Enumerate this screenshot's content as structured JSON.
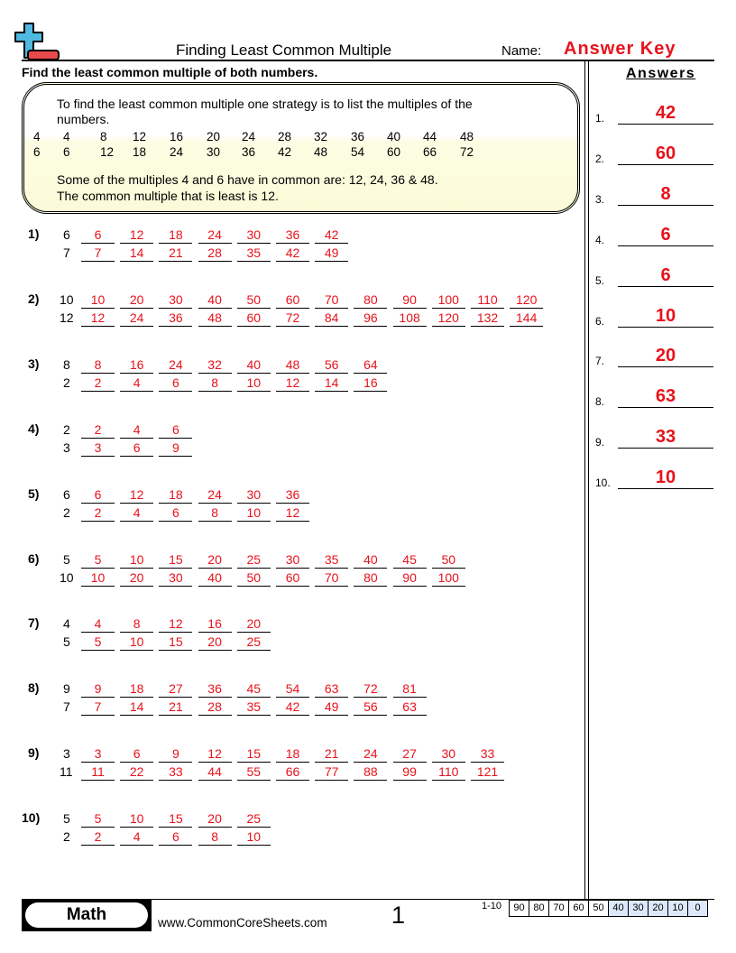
{
  "header": {
    "title": "Finding Least Common Multiple",
    "name_label": "Name:",
    "name_value": "Answer Key",
    "logo_icon": "plus-minus-logo-icon"
  },
  "instructions": "Find the least common multiple of both numbers.",
  "answers_heading": "Answers",
  "example": {
    "line1": "To find the least common multiple one strategy is to list the multiples of the",
    "line2": "numbers.",
    "rows": [
      [
        "4",
        "4",
        "8",
        "12",
        "16",
        "20",
        "24",
        "28",
        "32",
        "36",
        "40",
        "44",
        "48"
      ],
      [
        "6",
        "6",
        "12",
        "18",
        "24",
        "30",
        "36",
        "42",
        "48",
        "54",
        "60",
        "66",
        "72"
      ]
    ],
    "line3": "Some of the multiples 4 and 6 have in common are: 12, 24, 36 & 48.",
    "line4": "The common multiple that is least is 12."
  },
  "problems": [
    {
      "label": "1)",
      "a": "6",
      "b": "7",
      "ma": [
        "6",
        "12",
        "18",
        "24",
        "30",
        "36",
        "42"
      ],
      "mb": [
        "7",
        "14",
        "21",
        "28",
        "35",
        "42",
        "49"
      ]
    },
    {
      "label": "2)",
      "a": "10",
      "b": "12",
      "ma": [
        "10",
        "20",
        "30",
        "40",
        "50",
        "60",
        "70",
        "80",
        "90",
        "100",
        "110",
        "120"
      ],
      "mb": [
        "12",
        "24",
        "36",
        "48",
        "60",
        "72",
        "84",
        "96",
        "108",
        "120",
        "132",
        "144"
      ]
    },
    {
      "label": "3)",
      "a": "8",
      "b": "2",
      "ma": [
        "8",
        "16",
        "24",
        "32",
        "40",
        "48",
        "56",
        "64"
      ],
      "mb": [
        "2",
        "4",
        "6",
        "8",
        "10",
        "12",
        "14",
        "16"
      ]
    },
    {
      "label": "4)",
      "a": "2",
      "b": "3",
      "ma": [
        "2",
        "4",
        "6"
      ],
      "mb": [
        "3",
        "6",
        "9"
      ]
    },
    {
      "label": "5)",
      "a": "6",
      "b": "2",
      "ma": [
        "6",
        "12",
        "18",
        "24",
        "30",
        "36"
      ],
      "mb": [
        "2",
        "4",
        "6",
        "8",
        "10",
        "12"
      ]
    },
    {
      "label": "6)",
      "a": "5",
      "b": "10",
      "ma": [
        "5",
        "10",
        "15",
        "20",
        "25",
        "30",
        "35",
        "40",
        "45",
        "50"
      ],
      "mb": [
        "10",
        "20",
        "30",
        "40",
        "50",
        "60",
        "70",
        "80",
        "90",
        "100"
      ]
    },
    {
      "label": "7)",
      "a": "4",
      "b": "5",
      "ma": [
        "4",
        "8",
        "12",
        "16",
        "20"
      ],
      "mb": [
        "5",
        "10",
        "15",
        "20",
        "25"
      ]
    },
    {
      "label": "8)",
      "a": "9",
      "b": "7",
      "ma": [
        "9",
        "18",
        "27",
        "36",
        "45",
        "54",
        "63",
        "72",
        "81"
      ],
      "mb": [
        "7",
        "14",
        "21",
        "28",
        "35",
        "42",
        "49",
        "56",
        "63"
      ]
    },
    {
      "label": "9)",
      "a": "3",
      "b": "11",
      "ma": [
        "3",
        "6",
        "9",
        "12",
        "15",
        "18",
        "21",
        "24",
        "27",
        "30",
        "33"
      ],
      "mb": [
        "11",
        "22",
        "33",
        "44",
        "55",
        "66",
        "77",
        "88",
        "99",
        "110",
        "121"
      ]
    },
    {
      "label": "10)",
      "a": "5",
      "b": "2",
      "ma": [
        "5",
        "10",
        "15",
        "20",
        "25"
      ],
      "mb": [
        "2",
        "4",
        "6",
        "8",
        "10"
      ]
    }
  ],
  "answers": [
    {
      "n": "1.",
      "v": "42"
    },
    {
      "n": "2.",
      "v": "60"
    },
    {
      "n": "3.",
      "v": "8"
    },
    {
      "n": "4.",
      "v": "6"
    },
    {
      "n": "5.",
      "v": "6"
    },
    {
      "n": "6.",
      "v": "10"
    },
    {
      "n": "7.",
      "v": "20"
    },
    {
      "n": "8.",
      "v": "63"
    },
    {
      "n": "9.",
      "v": "33"
    },
    {
      "n": "10.",
      "v": "10"
    }
  ],
  "footer": {
    "subject": "Math",
    "site": "www.CommonCoreSheets.com",
    "page": "1",
    "score_label": "1-10",
    "scores": [
      "90",
      "80",
      "70",
      "60",
      "50",
      "40",
      "30",
      "20",
      "10",
      "0"
    ]
  },
  "colors": {
    "answer_red": "#e8121b",
    "score_highlight": "#dce8fb",
    "logo_blue": "#4fb9e0",
    "logo_red": "#e84a4a"
  }
}
